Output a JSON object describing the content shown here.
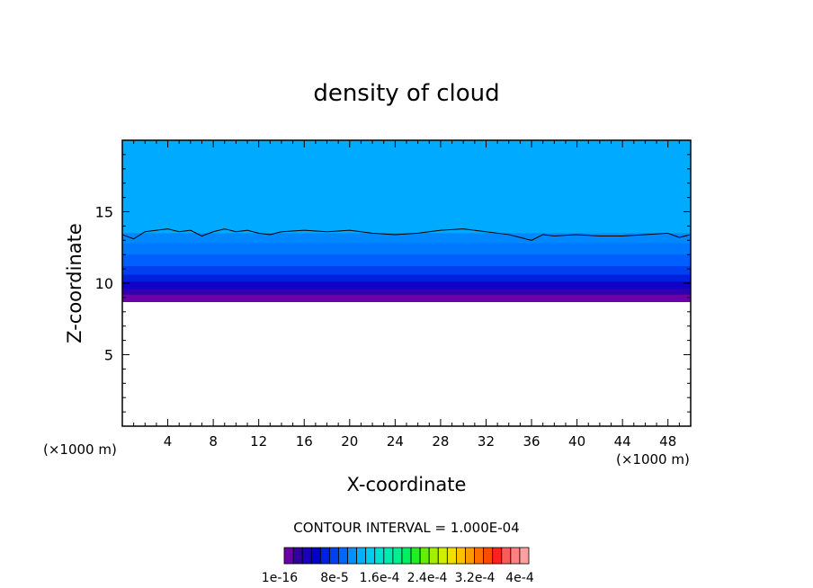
{
  "chart_data": {
    "type": "heatmap",
    "title": "density of cloud",
    "xlabel": "X-coordinate",
    "ylabel": "Z-coordinate",
    "x_unit": "(×1000 m)",
    "y_unit": "(×1000 m)",
    "xlim": [
      0,
      50
    ],
    "ylim": [
      0,
      20
    ],
    "x_ticks": [
      "4",
      "8",
      "12",
      "16",
      "20",
      "24",
      "28",
      "32",
      "36",
      "40",
      "44",
      "48"
    ],
    "y_ticks": [
      "5",
      "10",
      "15"
    ],
    "contour_interval_text": "CONTOUR INTERVAL = 1.000E-04",
    "colorbar_labels": [
      "1e-16",
      "8e-5",
      "1.6e-4",
      "2.4e-4",
      "3.2e-4",
      "4e-4"
    ],
    "colorbar_colors": [
      "#6a00a8",
      "#3300a0",
      "#1a00b8",
      "#0000c8",
      "#0020e0",
      "#0040f0",
      "#0066ff",
      "#0090ff",
      "#00b0ff",
      "#00ccf0",
      "#00e0d0",
      "#00eab0",
      "#00f090",
      "#00f060",
      "#20f020",
      "#60f000",
      "#a0f000",
      "#d0f000",
      "#f0e000",
      "#ffc000",
      "#ff9a00",
      "#ff7000",
      "#ff4a00",
      "#ff2020",
      "#ff5a5a",
      "#ff8080",
      "#ffa0a0"
    ],
    "cloud_base_km": 8.7,
    "cloud_layers": [
      {
        "z_top": 20.0,
        "color": "#00aaff"
      },
      {
        "z_top": 13.5,
        "color": "#0088ff"
      },
      {
        "z_top": 12.8,
        "color": "#0077ff"
      },
      {
        "z_top": 12.0,
        "color": "#0060ff"
      },
      {
        "z_top": 11.2,
        "color": "#0040f0"
      },
      {
        "z_top": 10.6,
        "color": "#0020e0"
      },
      {
        "z_top": 10.1,
        "color": "#1000c8"
      },
      {
        "z_top": 9.6,
        "color": "#3000b0"
      },
      {
        "z_top": 9.2,
        "color": "#6a00a8"
      }
    ],
    "contour_line_z": [
      [
        0,
        13.4
      ],
      [
        1,
        13.1
      ],
      [
        2,
        13.6
      ],
      [
        3,
        13.7
      ],
      [
        4,
        13.8
      ],
      [
        5,
        13.6
      ],
      [
        6,
        13.7
      ],
      [
        7,
        13.3
      ],
      [
        8,
        13.6
      ],
      [
        9,
        13.8
      ],
      [
        10,
        13.6
      ],
      [
        11,
        13.7
      ],
      [
        12,
        13.5
      ],
      [
        13,
        13.4
      ],
      [
        14,
        13.6
      ],
      [
        16,
        13.7
      ],
      [
        18,
        13.6
      ],
      [
        20,
        13.7
      ],
      [
        22,
        13.5
      ],
      [
        24,
        13.4
      ],
      [
        26,
        13.5
      ],
      [
        28,
        13.7
      ],
      [
        30,
        13.8
      ],
      [
        32,
        13.6
      ],
      [
        34,
        13.4
      ],
      [
        35,
        13.2
      ],
      [
        36,
        13.0
      ],
      [
        37,
        13.4
      ],
      [
        38,
        13.3
      ],
      [
        40,
        13.4
      ],
      [
        42,
        13.3
      ],
      [
        44,
        13.3
      ],
      [
        46,
        13.4
      ],
      [
        48,
        13.5
      ],
      [
        49,
        13.2
      ],
      [
        50,
        13.4
      ]
    ]
  }
}
